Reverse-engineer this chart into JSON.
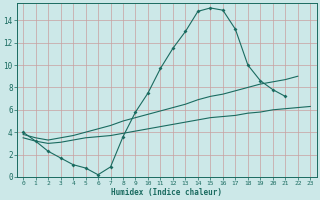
{
  "xlabel": "Humidex (Indice chaleur)",
  "bg_color": "#cce8e8",
  "grid_color": "#b8d4d4",
  "line_color": "#1a6b60",
  "curve1_x": [
    0,
    1,
    2,
    3,
    4,
    5,
    6,
    7,
    8,
    9,
    10,
    11,
    12,
    13,
    14,
    15,
    16,
    17,
    18,
    19,
    20,
    21
  ],
  "curve1_y": [
    4.0,
    3.2,
    2.3,
    1.7,
    1.1,
    0.8,
    0.2,
    0.9,
    3.6,
    5.8,
    7.5,
    9.7,
    11.5,
    13.0,
    14.8,
    15.1,
    14.9,
    13.2,
    10.0,
    8.6,
    7.8,
    7.2
  ],
  "curve2_x": [
    0,
    1,
    2,
    3,
    4,
    5,
    6,
    7,
    8,
    9,
    10,
    11,
    12,
    13,
    14,
    15,
    16,
    17,
    18,
    19,
    20,
    21,
    22,
    23
  ],
  "curve2_y": [
    3.8,
    3.5,
    3.3,
    3.5,
    3.7,
    4.0,
    4.3,
    4.6,
    5.0,
    5.3,
    5.6,
    5.9,
    6.2,
    6.5,
    6.9,
    7.2,
    7.4,
    7.7,
    8.0,
    8.3,
    8.5,
    8.7,
    9.0,
    null
  ],
  "curve3_x": [
    0,
    1,
    2,
    3,
    4,
    5,
    6,
    7,
    8,
    9,
    10,
    11,
    12,
    13,
    14,
    15,
    16,
    17,
    18,
    19,
    20,
    21,
    22,
    23
  ],
  "curve3_y": [
    3.5,
    3.2,
    3.0,
    3.1,
    3.3,
    3.5,
    3.6,
    3.7,
    3.9,
    4.1,
    4.3,
    4.5,
    4.7,
    4.9,
    5.1,
    5.3,
    5.4,
    5.5,
    5.7,
    5.8,
    6.0,
    6.1,
    6.2,
    6.3
  ],
  "xlim": [
    -0.5,
    23.5
  ],
  "ylim": [
    0,
    15.5
  ],
  "yticks": [
    0,
    2,
    4,
    6,
    8,
    10,
    12,
    14
  ],
  "xticks": [
    0,
    1,
    2,
    3,
    4,
    5,
    6,
    7,
    8,
    9,
    10,
    11,
    12,
    13,
    14,
    15,
    16,
    17,
    18,
    19,
    20,
    21,
    22,
    23
  ]
}
